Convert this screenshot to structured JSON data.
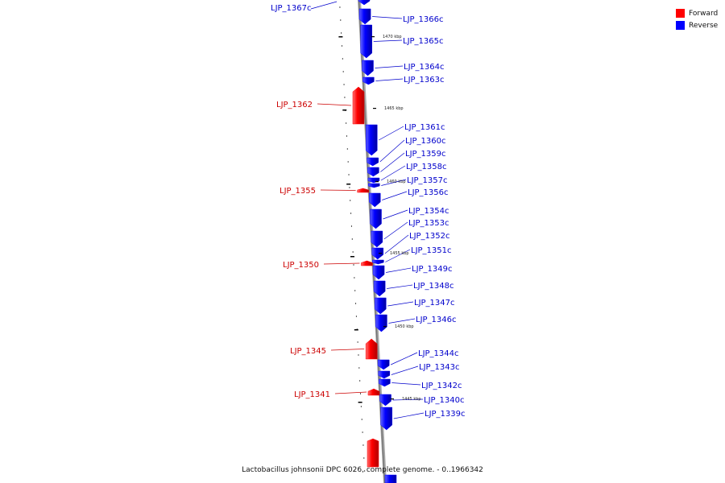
{
  "caption": "Lactobacillus johnsonii DPC 6026, complete genome. - 0..1966342",
  "legend": [
    {
      "label": "Forward",
      "color": "#ff0000"
    },
    {
      "label": "Reverse",
      "color": "#0000ff"
    }
  ],
  "colors": {
    "forward": "#ff0000",
    "reverse": "#0000ff",
    "backbone": "#888888"
  },
  "kbp_markers": [
    "1470 kbp",
    "1465 kbp",
    "1460 kbp",
    "1455 kbp",
    "1450 kbp",
    "1445 kbp"
  ],
  "genes": [
    {
      "id": "LJP_1367c",
      "strand": "reverse"
    },
    {
      "id": "LJP_1366c",
      "strand": "reverse"
    },
    {
      "id": "LJP_1365c",
      "strand": "reverse"
    },
    {
      "id": "LJP_1364c",
      "strand": "reverse"
    },
    {
      "id": "LJP_1363c",
      "strand": "reverse"
    },
    {
      "id": "LJP_1362",
      "strand": "forward"
    },
    {
      "id": "LJP_1361c",
      "strand": "reverse"
    },
    {
      "id": "LJP_1360c",
      "strand": "reverse"
    },
    {
      "id": "LJP_1359c",
      "strand": "reverse"
    },
    {
      "id": "LJP_1358c",
      "strand": "reverse"
    },
    {
      "id": "LJP_1357c",
      "strand": "reverse"
    },
    {
      "id": "LJP_1356c",
      "strand": "reverse"
    },
    {
      "id": "LJP_1355",
      "strand": "forward"
    },
    {
      "id": "LJP_1354c",
      "strand": "reverse"
    },
    {
      "id": "LJP_1353c",
      "strand": "reverse"
    },
    {
      "id": "LJP_1352c",
      "strand": "reverse"
    },
    {
      "id": "LJP_1351c",
      "strand": "reverse"
    },
    {
      "id": "LJP_1350",
      "strand": "forward"
    },
    {
      "id": "LJP_1349c",
      "strand": "reverse"
    },
    {
      "id": "LJP_1348c",
      "strand": "reverse"
    },
    {
      "id": "LJP_1347c",
      "strand": "reverse"
    },
    {
      "id": "LJP_1346c",
      "strand": "reverse"
    },
    {
      "id": "LJP_1345",
      "strand": "forward"
    },
    {
      "id": "LJP_1344c",
      "strand": "reverse"
    },
    {
      "id": "LJP_1343c",
      "strand": "reverse"
    },
    {
      "id": "LJP_1342c",
      "strand": "reverse"
    },
    {
      "id": "LJP_1341",
      "strand": "forward"
    },
    {
      "id": "LJP_1340c",
      "strand": "reverse"
    },
    {
      "id": "LJP_1339c",
      "strand": "reverse"
    }
  ]
}
